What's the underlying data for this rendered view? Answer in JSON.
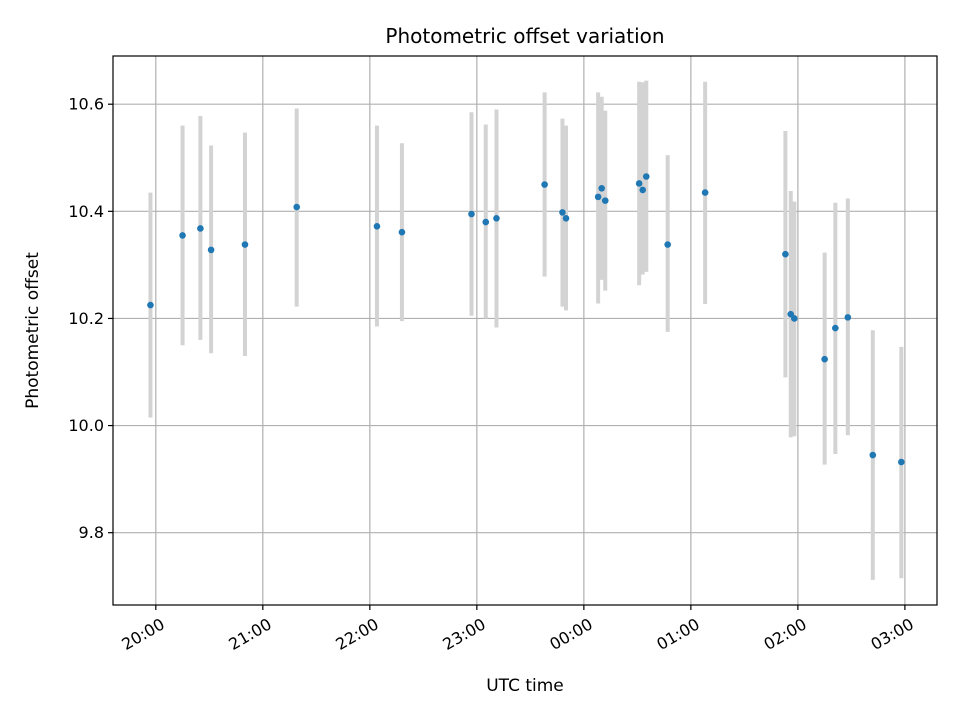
{
  "chart_data": {
    "type": "scatter",
    "title": "Photometric offset variation",
    "xlabel": "UTC time",
    "ylabel": "Photometric offset",
    "grid": true,
    "x_tick_labels": [
      "20:00",
      "21:00",
      "22:00",
      "23:00",
      "00:00",
      "01:00",
      "02:00",
      "03:00"
    ],
    "y_tick_labels": [
      "9.8",
      "10.0",
      "10.2",
      "10.4",
      "10.6"
    ],
    "x_ticks": [
      "19:60",
      "20:60",
      "21:60",
      "22:60",
      "23:60",
      "24:60",
      "25:60",
      "26:60"
    ],
    "y_ticks": [
      9.8,
      10.0,
      10.2,
      10.4,
      10.6
    ],
    "xlim": [
      "19:36",
      "27:18"
    ],
    "ylim": [
      9.665,
      10.69
    ],
    "colors": {
      "points": "#1f77b4",
      "error_bars": "#d3d3d3"
    },
    "series": [
      {
        "points": [
          {
            "x": "19:57",
            "y": 10.225,
            "lo": 10.015,
            "hi": 10.435
          },
          {
            "x": "20:15",
            "y": 10.355,
            "lo": 10.15,
            "hi": 10.56
          },
          {
            "x": "20:25",
            "y": 10.368,
            "lo": 10.16,
            "hi": 10.578
          },
          {
            "x": "20:31",
            "y": 10.328,
            "lo": 10.135,
            "hi": 10.523
          },
          {
            "x": "20:50",
            "y": 10.338,
            "lo": 10.13,
            "hi": 10.547
          },
          {
            "x": "21:19",
            "y": 10.408,
            "lo": 10.222,
            "hi": 10.592
          },
          {
            "x": "22:04",
            "y": 10.372,
            "lo": 10.185,
            "hi": 10.56
          },
          {
            "x": "22:18",
            "y": 10.361,
            "lo": 10.195,
            "hi": 10.527
          },
          {
            "x": "22:57",
            "y": 10.395,
            "lo": 10.205,
            "hi": 10.585
          },
          {
            "x": "23:05",
            "y": 10.38,
            "lo": 10.2,
            "hi": 10.562
          },
          {
            "x": "23:11",
            "y": 10.387,
            "lo": 10.183,
            "hi": 10.59
          },
          {
            "x": "23:38",
            "y": 10.45,
            "lo": 10.278,
            "hi": 10.622
          },
          {
            "x": "23:48",
            "y": 10.398,
            "lo": 10.222,
            "hi": 10.573
          },
          {
            "x": "23:50",
            "y": 10.387,
            "lo": 10.215,
            "hi": 10.56
          },
          {
            "x": "24:08",
            "y": 10.427,
            "lo": 10.228,
            "hi": 10.622
          },
          {
            "x": "24:10",
            "y": 10.443,
            "lo": 10.272,
            "hi": 10.614
          },
          {
            "x": "24:12",
            "y": 10.42,
            "lo": 10.252,
            "hi": 10.588
          },
          {
            "x": "24:31",
            "y": 10.452,
            "lo": 10.262,
            "hi": 10.642
          },
          {
            "x": "24:33",
            "y": 10.44,
            "lo": 10.282,
            "hi": 10.641
          },
          {
            "x": "24:35",
            "y": 10.465,
            "lo": 10.287,
            "hi": 10.644
          },
          {
            "x": "24:47",
            "y": 10.338,
            "lo": 10.175,
            "hi": 10.505
          },
          {
            "x": "25:08",
            "y": 10.435,
            "lo": 10.227,
            "hi": 10.642
          },
          {
            "x": "25:53",
            "y": 10.32,
            "lo": 10.09,
            "hi": 10.55
          },
          {
            "x": "25:56",
            "y": 10.208,
            "lo": 9.978,
            "hi": 10.438
          },
          {
            "x": "25:58",
            "y": 10.2,
            "lo": 9.98,
            "hi": 10.418
          },
          {
            "x": "26:15",
            "y": 10.124,
            "lo": 9.927,
            "hi": 10.323
          },
          {
            "x": "26:21",
            "y": 10.182,
            "lo": 9.947,
            "hi": 10.416
          },
          {
            "x": "26:28",
            "y": 10.202,
            "lo": 9.982,
            "hi": 10.424
          },
          {
            "x": "26:42",
            "y": 9.945,
            "lo": 9.712,
            "hi": 10.178
          },
          {
            "x": "26:58",
            "y": 9.932,
            "lo": 9.715,
            "hi": 10.147
          }
        ]
      }
    ]
  }
}
